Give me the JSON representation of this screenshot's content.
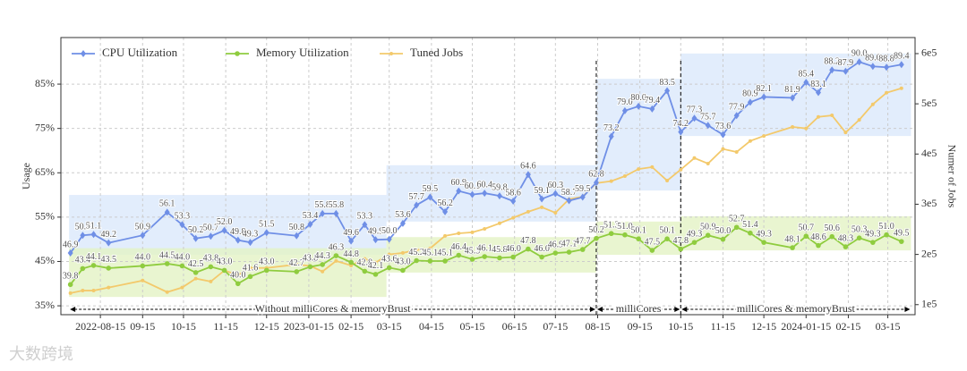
{
  "chart_data": {
    "type": "line",
    "y_label": "Usage",
    "y2_label": "Numer of Jobs",
    "watermark": "大数跨境",
    "x": [
      "2022-07-24",
      "2022-08-02",
      "2022-08-10",
      "2022-08-21",
      "2022-09-15",
      "2022-10-03",
      "2022-10-14",
      "2022-10-24",
      "2022-11-04",
      "2022-11-14",
      "2022-11-24",
      "2022-12-03",
      "2022-12-15",
      "2023-01-06",
      "2023-01-16",
      "2023-01-25",
      "2023-02-04",
      "2023-02-15",
      "2023-02-25",
      "2023-03-05",
      "2023-03-15",
      "2023-03-25",
      "2023-04-04",
      "2023-04-14",
      "2023-04-25",
      "2023-05-05",
      "2023-05-15",
      "2023-05-24",
      "2023-06-04",
      "2023-06-14",
      "2023-06-25",
      "2023-07-05",
      "2023-07-15",
      "2023-07-25",
      "2023-08-04",
      "2023-08-14",
      "2023-08-25",
      "2023-09-04",
      "2023-09-14",
      "2023-09-24",
      "2023-10-05",
      "2023-10-15",
      "2023-10-25",
      "2023-11-04",
      "2023-11-15",
      "2023-11-25",
      "2023-12-05",
      "2023-12-15",
      "2024-01-05",
      "2024-01-15",
      "2024-01-24",
      "2024-02-03",
      "2024-02-13",
      "2024-02-23",
      "2024-03-04",
      "2024-03-14",
      "2024-03-25"
    ],
    "series": [
      {
        "name": "CPU Utilization",
        "color": "#6f8fe6",
        "marker": "diamond",
        "values": [
          46.9,
          50.9,
          51.1,
          49.2,
          50.9,
          56.1,
          53.3,
          50.2,
          50.7,
          52.0,
          49.8,
          49.3,
          51.5,
          50.8,
          53.4,
          55.8,
          55.8,
          49.6,
          53.3,
          49.9,
          50.0,
          53.6,
          57.7,
          59.5,
          56.2,
          60.9,
          60.1,
          60.4,
          59.8,
          58.6,
          64.6,
          59.1,
          60.3,
          58.7,
          59.5,
          62.8,
          73.2,
          79.0,
          80.0,
          79.4,
          83.5,
          74.2,
          77.3,
          75.7,
          73.6,
          77.9,
          80.9,
          82.1,
          81.9,
          85.4,
          83.1,
          88.2,
          87.9,
          90.0,
          89.0,
          88.8,
          89.4
        ],
        "value_labels": [
          "46.9",
          "50.9",
          "51.1",
          "49.2",
          "50.9",
          "56.1",
          "53.3",
          "50.2",
          "50.7",
          "52.0",
          "49.8",
          "49.3",
          "51.5",
          "50.8",
          "53.4",
          "55.8",
          "55.8",
          "49.6",
          "53.3",
          "49.9",
          "50.0",
          "53.6",
          "57.7",
          "59.5",
          "56.2",
          "60.9",
          "60.1",
          "60.4",
          "59.8",
          "58.6",
          "64.6",
          "59.1",
          "60.3",
          "58.7",
          "59.5",
          "62.8",
          "73.2",
          "79.0",
          "80.0",
          "79.4",
          "83.5",
          "74.2",
          "77.3",
          "75.7",
          "73.6",
          "77.9",
          "80.9",
          "82.1",
          "81.9",
          "85.4",
          "83.1",
          "88.2",
          "87.9",
          "90.0",
          "89.0",
          "88.8",
          "89.4"
        ]
      },
      {
        "name": "Memory Utilization",
        "color": "#8fcc3f",
        "marker": "circle",
        "values": [
          39.8,
          43.4,
          44.1,
          43.5,
          44.0,
          44.5,
          44.0,
          42.5,
          43.8,
          43.0,
          40.0,
          41.6,
          43.0,
          42.7,
          43.8,
          44.3,
          46.3,
          44.8,
          42.8,
          42.1,
          43.6,
          43.0,
          45.2,
          45.1,
          45.1,
          46.4,
          45.5,
          46.1,
          45.8,
          46.0,
          47.8,
          46.0,
          46.9,
          47.1,
          47.7,
          50.2,
          51.3,
          51.0,
          50.1,
          47.5,
          50.1,
          47.8,
          49.3,
          50.9,
          50.0,
          52.7,
          51.4,
          49.3,
          48.1,
          50.7,
          48.6,
          50.6,
          48.3,
          50.3,
          49.3,
          51.0,
          49.5
        ],
        "value_labels": [
          "39.8",
          "43.4",
          "44.1",
          "43.5",
          "44.0",
          "44.5",
          "44.0",
          "42.5",
          "43.8",
          "43.0",
          "40.0",
          "41.6",
          "43.0",
          "42.7",
          "43.8",
          "44.3",
          "46.3",
          "44.8",
          "42.8",
          "42.1",
          "43.6",
          "43.0",
          "45.2",
          "45.1",
          "45.1",
          "46.4",
          "45.5",
          "46.1",
          "45.8",
          "46.0",
          "47.8",
          "46.0",
          "46.9",
          "47.1",
          "47.7",
          "50.2",
          "51.3",
          "51.0",
          "50.1",
          "47.5",
          "50.1",
          "47.8",
          "49.3",
          "50.9",
          "50.0",
          "52.7",
          "51.4",
          "49.3",
          "48.1",
          "50.7",
          "48.6",
          "50.6",
          "48.3",
          "50.3",
          "49.3",
          "51.0",
          "49.5"
        ]
      },
      {
        "name": "Tuned Jobs",
        "color": "#f3c96b",
        "marker": "small",
        "axis": "y2",
        "values": [
          123000,
          128000,
          128000,
          134000,
          148000,
          125000,
          134000,
          152000,
          146000,
          168000,
          159000,
          173000,
          173000,
          180000,
          177000,
          166000,
          187000,
          178000,
          191000,
          184000,
          200000,
          203000,
          209000,
          212000,
          237000,
          242000,
          244000,
          251000,
          262000,
          273000,
          285000,
          294000,
          283000,
          310000,
          315000,
          342000,
          346000,
          356000,
          370000,
          374000,
          347000,
          369000,
          392000,
          381000,
          410000,
          404000,
          426000,
          436000,
          454000,
          451000,
          474000,
          477000,
          443000,
          468000,
          499000,
          522000,
          531000
        ]
      }
    ],
    "xlim": [
      "2022-07-17",
      "2024-04-04"
    ],
    "xticks": [
      "2022-08-15",
      {
        "value": "2022-09-15",
        "label": "09-15"
      },
      {
        "value": "2022-10-15",
        "label": "10-15"
      },
      {
        "value": "2022-11-15",
        "label": "11-15"
      },
      {
        "value": "2022-12-15",
        "label": "12-15"
      },
      "2023-01-15",
      {
        "value": "2023-02-15",
        "label": "02-15"
      },
      {
        "value": "2023-03-15",
        "label": "03-15"
      },
      {
        "value": "2023-04-15",
        "label": "04-15"
      },
      {
        "value": "2023-05-15",
        "label": "05-15"
      },
      {
        "value": "2023-06-15",
        "label": "06-15"
      },
      {
        "value": "2023-07-15",
        "label": "07-15"
      },
      {
        "value": "2023-08-15",
        "label": "08-15"
      },
      {
        "value": "2023-09-15",
        "label": "09-15"
      },
      {
        "value": "2023-10-15",
        "label": "10-15"
      },
      {
        "value": "2023-11-15",
        "label": "11-15"
      },
      {
        "value": "2023-12-15",
        "label": "12-15"
      },
      "2024-01-15",
      {
        "value": "2024-02-15",
        "label": "02-15"
      },
      {
        "value": "2024-03-15",
        "label": "03-15"
      }
    ],
    "ylim": [
      33,
      95.5
    ],
    "yticks": [
      {
        "value": 35,
        "label": "35%"
      },
      {
        "value": 45,
        "label": "45%"
      },
      {
        "value": 55,
        "label": "55%"
      },
      {
        "value": 65,
        "label": "65%"
      },
      {
        "value": 75,
        "label": "75%"
      },
      {
        "value": 85,
        "label": "85%"
      }
    ],
    "y2lim": [
      80000,
      632000
    ],
    "y2ticks": [
      {
        "value": 100000,
        "label": "1e5"
      },
      {
        "value": 200000,
        "label": "2e5"
      },
      {
        "value": 300000,
        "label": "3e5"
      },
      {
        "value": 400000,
        "label": "4e5"
      },
      {
        "value": 500000,
        "label": "5e5"
      },
      {
        "value": 600000,
        "label": "6e5"
      }
    ],
    "grid": true,
    "legend": "upper left",
    "regions": [
      {
        "start": "2022-07-23",
        "end": "2023-03-13",
        "cpu_band": [
          46.5,
          60
        ],
        "memory_band": [
          37,
          48
        ]
      },
      {
        "start": "2023-03-13",
        "end": "2023-08-14",
        "cpu_band": [
          54,
          66.7
        ],
        "memory_band": [
          42.5,
          50.5
        ]
      },
      {
        "start": "2023-08-14",
        "end": "2023-10-15",
        "cpu_band": [
          61,
          86.2
        ],
        "memory_band": [
          46.5,
          54
        ]
      },
      {
        "start": "2023-10-15",
        "end": "2024-04-01",
        "cpu_band": [
          73.3,
          91.9
        ],
        "memory_band": [
          47.5,
          55.2
        ]
      }
    ],
    "annotations": [
      {
        "text": "Without milliCores & memoryBrust",
        "start": "2022-07-23",
        "end": "2023-08-14"
      },
      {
        "text": "milliCores",
        "start": "2023-08-14",
        "end": "2023-10-15"
      },
      {
        "text": "milliCores & memoryBrust",
        "start": "2023-10-15",
        "end": "2024-04-01"
      }
    ]
  }
}
